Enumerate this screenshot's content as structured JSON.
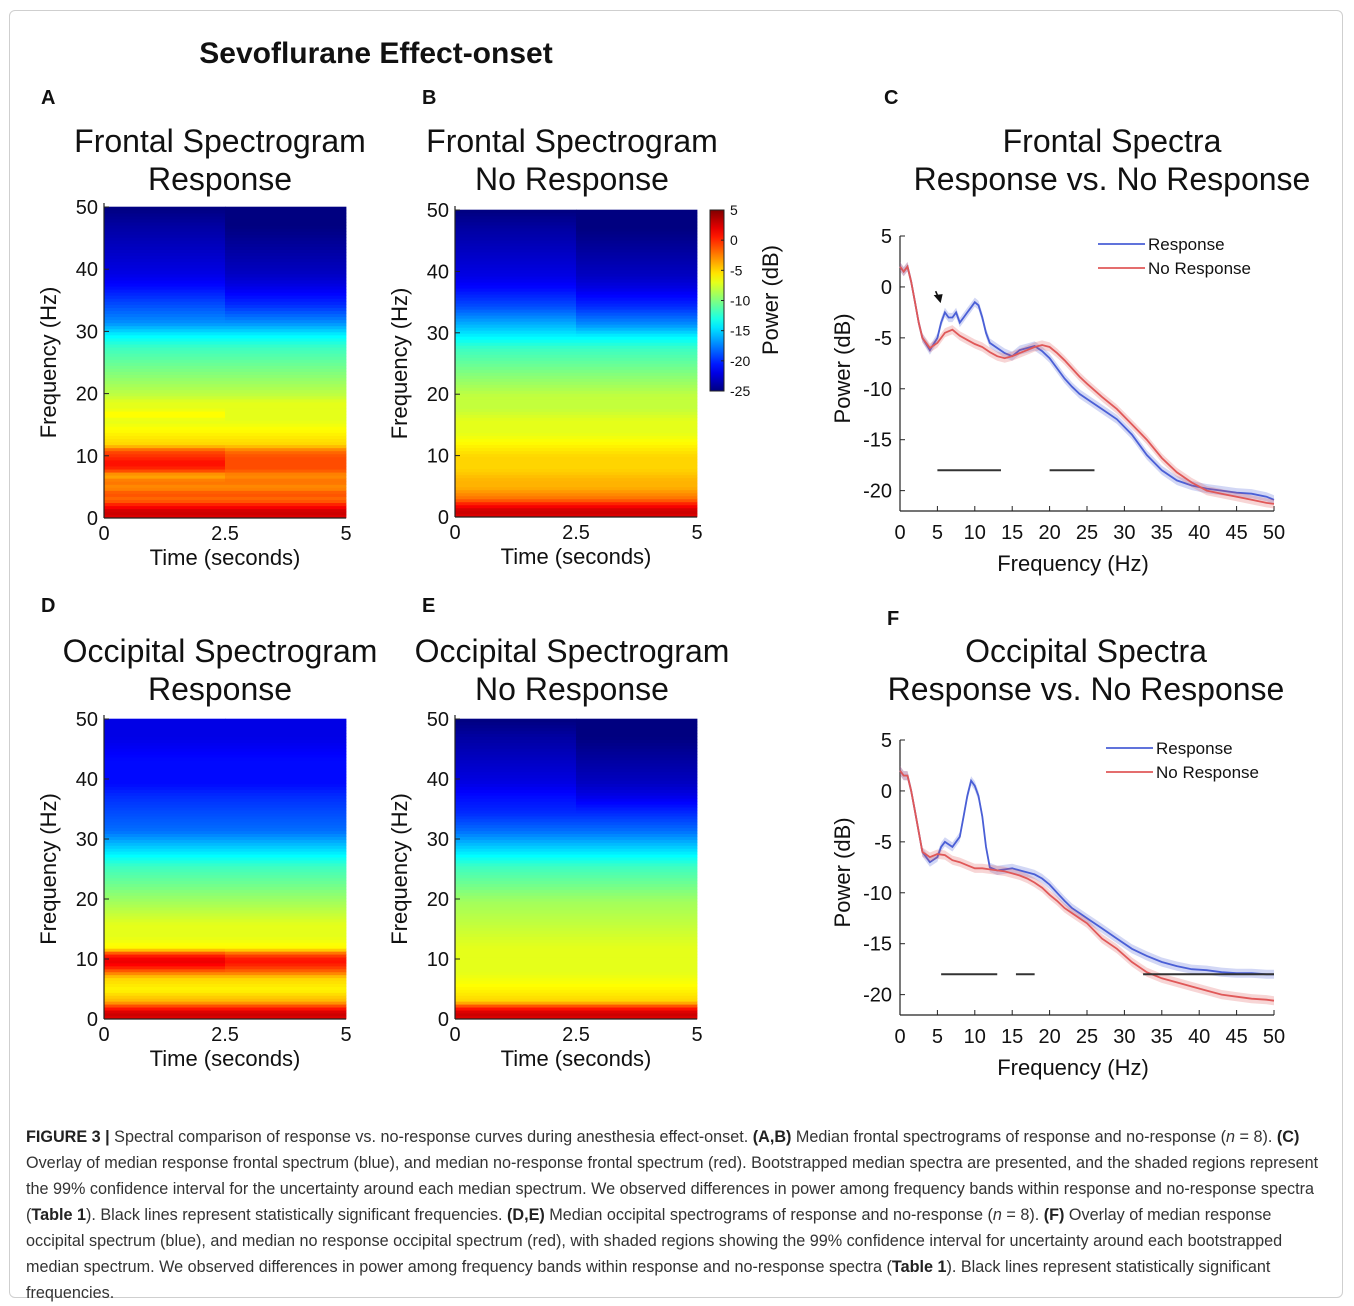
{
  "figure_title": "Sevoflurane Effect-onset",
  "colorbar": {
    "label": "Power (dB)",
    "ticks": [
      "5",
      "0",
      "-5",
      "-10",
      "-15",
      "-20",
      "-25"
    ],
    "range": [
      -25,
      5
    ]
  },
  "chart_data": [
    {
      "panel": "A",
      "type": "heatmap",
      "title": [
        "Frontal Spectrogram",
        "Response"
      ],
      "xlabel": "Time (seconds)",
      "ylabel": "Frequency (Hz)",
      "xticks": [
        "0",
        "2.5",
        "5"
      ],
      "yticks": [
        "0",
        "10",
        "20",
        "30",
        "40",
        "50"
      ],
      "xlim": [
        0,
        5
      ],
      "ylim": [
        0,
        50
      ],
      "time_segments": [
        {
          "freq_hz": [
            0,
            1,
            2,
            3,
            4,
            5,
            6,
            7,
            8,
            9,
            10,
            11,
            12,
            14,
            16,
            17,
            18,
            19,
            20,
            22,
            24,
            26,
            28,
            30,
            32,
            35,
            38,
            40,
            44,
            48,
            51
          ],
          "power_db": [
            2,
            3,
            1,
            -2,
            -1,
            -3,
            -2,
            -4,
            0,
            1,
            0,
            -1,
            -5,
            -6,
            -7,
            -6,
            -7,
            -7,
            -8,
            -9,
            -10,
            -11,
            -12,
            -14,
            -17,
            -19,
            -21,
            -22,
            -23,
            -24,
            -25
          ]
        },
        {
          "freq_hz": [
            0,
            1,
            2,
            3,
            4,
            5,
            6,
            7,
            8,
            9,
            10,
            11,
            12,
            14,
            16,
            17,
            18,
            19,
            20,
            22,
            24,
            26,
            28,
            30,
            32,
            35,
            38,
            40,
            44,
            48,
            51
          ],
          "power_db": [
            2,
            3,
            1,
            -2,
            -1,
            -3,
            -2,
            -3,
            -1,
            -1,
            -1,
            -2,
            -5,
            -6,
            -7,
            -7,
            -7,
            -7,
            -8,
            -9,
            -10,
            -11,
            -12,
            -14,
            -17,
            -20,
            -22,
            -23,
            -24,
            -25,
            -25
          ]
        }
      ]
    },
    {
      "panel": "B",
      "type": "heatmap",
      "title": [
        "Frontal Spectrogram",
        "No Response"
      ],
      "xlabel": "Time (seconds)",
      "ylabel": "Frequency (Hz)",
      "xticks": [
        "0",
        "2.5",
        "5"
      ],
      "yticks": [
        "0",
        "10",
        "20",
        "30",
        "40",
        "50"
      ],
      "xlim": [
        0,
        5
      ],
      "ylim": [
        0,
        50
      ],
      "time_segments": [
        {
          "freq_hz": [
            0,
            1,
            2,
            3,
            4,
            5,
            6,
            8,
            10,
            12,
            14,
            16,
            18,
            20,
            22,
            24,
            26,
            28,
            30,
            32,
            35,
            38,
            40,
            44,
            48,
            51
          ],
          "power_db": [
            2,
            3,
            1,
            -2,
            -3,
            -4,
            -4,
            -5,
            -5,
            -6,
            -7,
            -7,
            -8,
            -8,
            -9,
            -10,
            -11,
            -12,
            -14,
            -16,
            -19,
            -21,
            -22,
            -23,
            -24,
            -25
          ]
        },
        {
          "freq_hz": [
            0,
            1,
            2,
            3,
            4,
            5,
            6,
            8,
            10,
            12,
            14,
            16,
            18,
            20,
            22,
            24,
            26,
            28,
            30,
            32,
            35,
            38,
            40,
            44,
            48,
            51
          ],
          "power_db": [
            2,
            3,
            1,
            -2,
            -3,
            -4,
            -4,
            -5,
            -5,
            -6,
            -7,
            -7,
            -8,
            -8,
            -9,
            -10,
            -11,
            -12,
            -14,
            -17,
            -20,
            -22,
            -23,
            -24,
            -25,
            -25
          ]
        }
      ]
    },
    {
      "panel": "C",
      "type": "line",
      "title": [
        "Frontal Spectra",
        "Response vs. No Response"
      ],
      "xlabel": "Frequency (Hz)",
      "ylabel": "Power (dB)",
      "xlim": [
        0,
        50
      ],
      "ylim": [
        -22,
        5
      ],
      "xticks": [
        0,
        5,
        10,
        15,
        20,
        25,
        30,
        35,
        40,
        45,
        50
      ],
      "yticks": [
        5,
        0,
        -5,
        -10,
        -15,
        -20
      ],
      "legend_position": "top-right",
      "series": [
        {
          "name": "Response",
          "color": "#4a5fd6",
          "x": [
            0,
            0.5,
            1,
            1.5,
            2,
            2.5,
            3,
            4,
            5,
            5.5,
            6,
            6.5,
            7,
            7.5,
            8,
            8.5,
            9,
            9.5,
            10,
            10.5,
            11,
            11.5,
            12,
            13,
            14,
            15,
            16,
            17,
            18,
            19,
            20,
            21,
            22,
            23,
            24,
            25,
            27,
            29,
            31,
            33,
            35,
            37,
            39,
            41,
            43,
            45,
            47,
            49,
            50
          ],
          "y": [
            2,
            1.5,
            2,
            0.5,
            -1.5,
            -3.5,
            -5,
            -6.2,
            -5,
            -3.5,
            -2.5,
            -3,
            -3,
            -2.5,
            -3.5,
            -3,
            -2.5,
            -2,
            -1.5,
            -1.8,
            -3,
            -4.5,
            -5.5,
            -6,
            -6.5,
            -6.8,
            -6.2,
            -6,
            -5.8,
            -6.3,
            -7,
            -8,
            -9,
            -9.8,
            -10.5,
            -11,
            -12,
            -13,
            -14.5,
            -16.5,
            -18,
            -19,
            -19.5,
            -19.8,
            -20,
            -20.2,
            -20.3,
            -20.6,
            -20.9
          ]
        },
        {
          "name": "No Response",
          "color": "#e05858",
          "x": [
            0,
            0.5,
            1,
            1.5,
            2,
            2.5,
            3,
            4,
            5,
            6,
            7,
            8,
            9,
            10,
            11,
            12,
            13,
            14,
            15,
            16,
            17,
            18,
            19,
            20,
            21,
            22,
            23,
            24,
            25,
            27,
            29,
            31,
            33,
            35,
            37,
            39,
            41,
            43,
            45,
            47,
            49,
            50
          ],
          "y": [
            2,
            1.5,
            2,
            0.5,
            -1.5,
            -3.5,
            -5,
            -6,
            -5.5,
            -4.5,
            -4.2,
            -4.8,
            -5.2,
            -5.6,
            -5.9,
            -6.4,
            -6.8,
            -7,
            -6.8,
            -6.5,
            -6.2,
            -5.9,
            -5.7,
            -5.9,
            -6.5,
            -7.2,
            -8,
            -8.8,
            -9.5,
            -10.8,
            -12,
            -13.5,
            -15,
            -16.8,
            -18.2,
            -19.2,
            -20,
            -20.3,
            -20.6,
            -20.9,
            -21.2,
            -21.3
          ]
        }
      ],
      "significance_ranges_hz": [
        [
          5,
          13.5
        ],
        [
          20,
          26
        ]
      ],
      "annotation": "arrow at ~5.5 Hz"
    },
    {
      "panel": "D",
      "type": "heatmap",
      "title": [
        "Occipital Spectrogram",
        "Response"
      ],
      "xlabel": "Time (seconds)",
      "ylabel": "Frequency (Hz)",
      "xticks": [
        "0",
        "2.5",
        "5"
      ],
      "yticks": [
        "0",
        "10",
        "20",
        "30",
        "40",
        "50"
      ],
      "xlim": [
        0,
        5
      ],
      "ylim": [
        0,
        50
      ],
      "time_segments": [
        {
          "freq_hz": [
            0,
            1,
            2,
            3,
            5,
            7,
            8,
            9,
            10,
            11,
            12,
            14,
            16,
            18,
            20,
            22,
            24,
            26,
            28,
            30,
            32,
            35,
            38,
            40,
            44,
            48,
            51
          ],
          "power_db": [
            2,
            3,
            0,
            -4,
            -6,
            -5,
            -2,
            1,
            2,
            0,
            -6,
            -7,
            -7,
            -8,
            -9,
            -10,
            -11,
            -12,
            -14,
            -16,
            -18,
            -19,
            -20,
            -21,
            -21,
            -22,
            -22
          ]
        },
        {
          "freq_hz": [
            0,
            1,
            2,
            3,
            5,
            7,
            8,
            9,
            10,
            11,
            12,
            14,
            16,
            18,
            20,
            22,
            24,
            26,
            28,
            30,
            32,
            35,
            38,
            40,
            44,
            48,
            51
          ],
          "power_db": [
            2,
            3,
            0,
            -4,
            -6,
            -5,
            -2,
            0,
            1,
            -1,
            -6,
            -7,
            -7,
            -8,
            -9,
            -10,
            -11,
            -12,
            -14,
            -16,
            -18,
            -19,
            -20,
            -21,
            -21,
            -22,
            -22
          ]
        }
      ]
    },
    {
      "panel": "E",
      "type": "heatmap",
      "title": [
        "Occipital Spectrogram",
        "No Response"
      ],
      "xlabel": "Time (seconds)",
      "ylabel": "Frequency (Hz)",
      "xticks": [
        "0",
        "2.5",
        "5"
      ],
      "yticks": [
        "0",
        "10",
        "20",
        "30",
        "40",
        "50"
      ],
      "xlim": [
        0,
        5
      ],
      "ylim": [
        0,
        50
      ],
      "time_segments": [
        {
          "freq_hz": [
            0,
            1,
            2,
            3,
            5,
            8,
            12,
            16,
            20,
            22,
            24,
            26,
            28,
            30,
            32,
            35,
            38,
            40,
            44,
            48,
            51
          ],
          "power_db": [
            2,
            3,
            0,
            -5,
            -6,
            -7,
            -7,
            -8,
            -9,
            -10,
            -11,
            -12,
            -14,
            -16,
            -18,
            -20,
            -21,
            -22,
            -23,
            -24,
            -25
          ]
        },
        {
          "freq_hz": [
            0,
            1,
            2,
            3,
            5,
            8,
            12,
            16,
            20,
            22,
            24,
            26,
            28,
            30,
            32,
            35,
            38,
            40,
            44,
            48,
            51
          ],
          "power_db": [
            2,
            3,
            0,
            -5,
            -6,
            -7,
            -7,
            -8,
            -9,
            -10,
            -11,
            -12,
            -14,
            -16,
            -18,
            -20,
            -22,
            -23,
            -24,
            -25,
            -25
          ]
        }
      ]
    },
    {
      "panel": "F",
      "type": "line",
      "title": [
        "Occipital Spectra",
        "Response vs. No Response"
      ],
      "xlabel": "Frequency (Hz)",
      "ylabel": "Power (dB)",
      "xlim": [
        0,
        50
      ],
      "ylim": [
        -22,
        5
      ],
      "xticks": [
        0,
        5,
        10,
        15,
        20,
        25,
        30,
        35,
        40,
        45,
        50
      ],
      "yticks": [
        5,
        0,
        -5,
        -10,
        -15,
        -20
      ],
      "legend_position": "top-right",
      "series": [
        {
          "name": "Response",
          "color": "#4a5fd6",
          "x": [
            0,
            0.5,
            1,
            1.5,
            2,
            2.5,
            3,
            4,
            5,
            5.5,
            6,
            7,
            8,
            8.5,
            9,
            9.5,
            10,
            10.5,
            11,
            11.5,
            12,
            13,
            14,
            15,
            16,
            17,
            18,
            19,
            20,
            21,
            22,
            23,
            24,
            25,
            27,
            29,
            31,
            33,
            35,
            37,
            39,
            41,
            43,
            45,
            47,
            49,
            50
          ],
          "y": [
            2,
            1.5,
            1.5,
            0,
            -2,
            -4,
            -6,
            -7,
            -6.5,
            -5.5,
            -5,
            -5.5,
            -4.5,
            -2.5,
            -0.5,
            1,
            0.5,
            -0.5,
            -2.5,
            -5.5,
            -7.5,
            -7.8,
            -7.7,
            -7.6,
            -7.8,
            -8,
            -8.2,
            -8.6,
            -9.2,
            -10,
            -10.8,
            -11.5,
            -12,
            -12.5,
            -13.5,
            -14.5,
            -15.5,
            -16.2,
            -16.8,
            -17.2,
            -17.5,
            -17.6,
            -17.8,
            -17.9,
            -17.9,
            -18,
            -18
          ]
        },
        {
          "name": "No Response",
          "color": "#e05858",
          "x": [
            0,
            0.5,
            1,
            1.5,
            2,
            2.5,
            3,
            4,
            5,
            6,
            7,
            8,
            9,
            10,
            11,
            12,
            13,
            14,
            15,
            16,
            17,
            18,
            19,
            20,
            21,
            22,
            23,
            24,
            25,
            27,
            29,
            31,
            33,
            35,
            37,
            39,
            41,
            43,
            45,
            47,
            49,
            50
          ],
          "y": [
            2,
            1.5,
            1.5,
            0,
            -2,
            -4,
            -6,
            -6.5,
            -6.2,
            -6.3,
            -6.8,
            -7,
            -7.3,
            -7.6,
            -7.6,
            -7.7,
            -7.8,
            -7.9,
            -8.1,
            -8.3,
            -8.6,
            -9,
            -9.5,
            -10.2,
            -10.8,
            -11.5,
            -12,
            -12.5,
            -13,
            -14.5,
            -15.5,
            -16.8,
            -17.8,
            -18.4,
            -18.8,
            -19.2,
            -19.6,
            -20,
            -20.2,
            -20.4,
            -20.5,
            -20.6
          ]
        }
      ],
      "significance_ranges_hz": [
        [
          5.5,
          13
        ],
        [
          15.5,
          18
        ],
        [
          32.5,
          50
        ]
      ]
    }
  ],
  "caption": {
    "fig_label": "FIGURE 3 |",
    "s1": " Spectral comparison of response vs. no-response curves during anesthesia effect-onset. ",
    "ab": "(A,B)",
    "s2": " Median frontal spectrograms of response and no-response (",
    "n1": "n",
    "s3": " = 8). ",
    "c": "(C)",
    "s4": " Overlay of median response frontal spectrum (blue), and median no-response frontal spectrum (red). Bootstrapped median spectra are presented, and the shaded regions represent the 99% confidence interval for the uncertainty around each median spectrum. We observed differences in power among frequency bands within response and no-response spectra (",
    "t1": "Table 1",
    "s5": "). Black lines represent statistically significant frequencies. ",
    "de": "(D,E)",
    "s6": " Median occipital spectrograms of response and no-response (",
    "n2": "n",
    "s7": " = 8). ",
    "f": "(F)",
    "s8": " Overlay of median response occipital spectrum (blue), and median no response occipital spectrum (red), with shaded regions showing the 99% confidence interval for uncertainty around each bootstrapped median spectrum. We observed differences in power among frequency bands within response and no-response spectra (",
    "t2": "Table 1",
    "s9": "). Black lines represent statistically significant frequencies."
  }
}
